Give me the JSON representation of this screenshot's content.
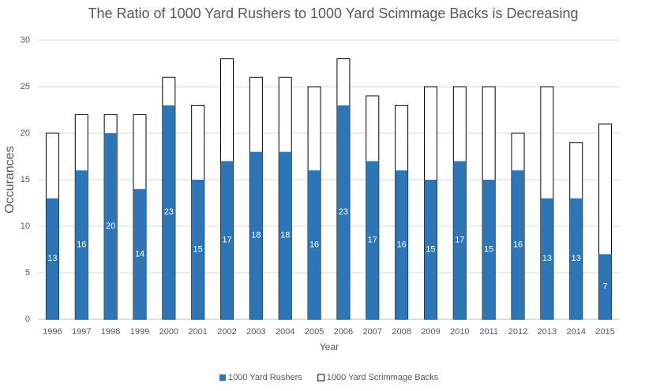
{
  "chart_data": {
    "type": "bar",
    "barmode": "overlay",
    "title": "The Ratio of 1000 Yard Rushers to 1000 Yard Scimmage Backs is Decreasing",
    "x_label": "Year",
    "y_label": "Occurances",
    "categories": [
      "1996",
      "1997",
      "1998",
      "1999",
      "2000",
      "2001",
      "2002",
      "2003",
      "2004",
      "2005",
      "2006",
      "2007",
      "2008",
      "2009",
      "2010",
      "2011",
      "2012",
      "2013",
      "2014",
      "2015"
    ],
    "series": [
      {
        "name": "1000 Yard Rushers",
        "color": "#2e75b6",
        "data_labels": true,
        "values": [
          13,
          16,
          20,
          14,
          23,
          15,
          17,
          18,
          18,
          16,
          23,
          17,
          16,
          15,
          17,
          15,
          16,
          13,
          13,
          7
        ]
      },
      {
        "name": "1000 Yard Scrimmage Backs",
        "color": "#ffffff",
        "data_labels": false,
        "values": [
          20,
          22,
          22,
          22,
          26,
          23,
          28,
          26,
          26,
          25,
          28,
          24,
          23,
          25,
          25,
          25,
          20,
          25,
          19,
          21
        ]
      }
    ],
    "ylim": [
      0,
      30
    ],
    "yticks": [
      0,
      5,
      10,
      15,
      20,
      25,
      30
    ],
    "grid": true,
    "legend": "bottom"
  }
}
